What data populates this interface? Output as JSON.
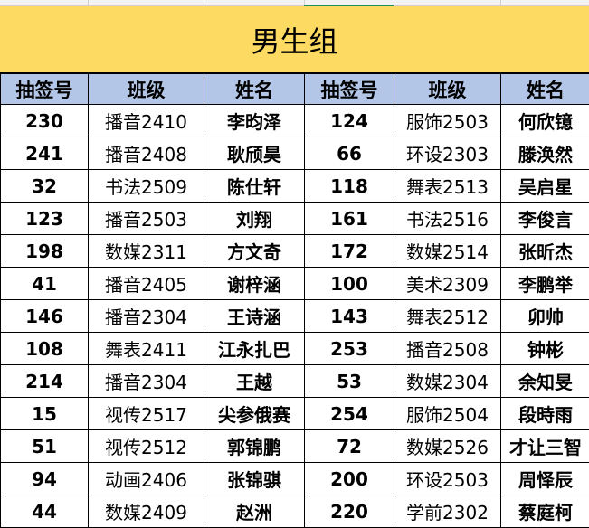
{
  "title": "男生组",
  "headers": [
    "抽签号",
    "班级",
    "姓名",
    "抽签号",
    "班级",
    "姓名"
  ],
  "rows": [
    [
      "230",
      "播音2410",
      "李昀泽",
      "124",
      "服饰2503",
      "何欣镱"
    ],
    [
      "241",
      "播音2408",
      "耿颀昊",
      "66",
      "环设2303",
      "滕涣然"
    ],
    [
      "32",
      "书法2509",
      "陈仕轩",
      "118",
      "舞表2513",
      "吴启星"
    ],
    [
      "123",
      "播音2503",
      "刘翔",
      "161",
      "书法2516",
      "李俊言"
    ],
    [
      "198",
      "数媒2311",
      "方文奇",
      "172",
      "数媒2514",
      "张昕杰"
    ],
    [
      "41",
      "播音2405",
      "谢梓涵",
      "100",
      "美术2309",
      "李鹏举"
    ],
    [
      "146",
      "播音2304",
      "王诗涵",
      "143",
      "舞表2512",
      "卯帅"
    ],
    [
      "108",
      "舞表2411",
      "江永扎巴",
      "253",
      "播音2508",
      "钟彬"
    ],
    [
      "214",
      "播音2304",
      "王越",
      "53",
      "数媒2304",
      "余知旻"
    ],
    [
      "15",
      "视传2517",
      "尖参俄赛",
      "254",
      "服饰2504",
      "段時雨"
    ],
    [
      "51",
      "视传2512",
      "郭锦鹏",
      "72",
      "数媒2526",
      "才让三智"
    ],
    [
      "94",
      "动画2406",
      "张锦骐",
      "200",
      "环设2503",
      "周怿辰"
    ],
    [
      "44",
      "数媒2409",
      "赵洲",
      "220",
      "学前2302",
      "蔡庭柯"
    ]
  ]
}
